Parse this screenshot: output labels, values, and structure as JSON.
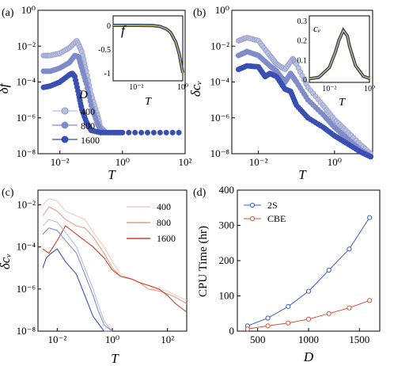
{
  "colors": {
    "d400": "#b9bfdf",
    "d800": "#7f8cc9",
    "d1600": "#3a4fb2",
    "d400_c": "#f4c9c0",
    "d800_c": "#e89c89",
    "d1600_c": "#c8432a",
    "s2": "#3b5ec8",
    "cbe": "#d2553a",
    "inset_fill": "#2e3d7a",
    "inset_line": "#e6d44a"
  },
  "panels": {
    "a": {
      "label": "(a)",
      "ylabel": "δf",
      "xlabel": "T",
      "inset_label": "f",
      "inset_xlabel": "T",
      "legend_title": "D"
    },
    "b": {
      "label": "(b)",
      "ylabel": "δcᵥ",
      "xlabel": "T",
      "inset_label": "cᵥ",
      "inset_xlabel": "T"
    },
    "c": {
      "label": "(c)",
      "ylabel": "δcᵥ",
      "xlabel": "T"
    },
    "d": {
      "label": "(d)",
      "ylabel": "CPU Time (hr)",
      "xlabel": "D"
    }
  },
  "ticks": {
    "a_x": [
      "10⁻²",
      "10⁰",
      "10²"
    ],
    "a_y": [
      "10⁻⁸",
      "10⁻⁶",
      "10⁻⁴",
      "10⁻²",
      "10⁰"
    ],
    "a_ix": [
      "10⁻²",
      "10⁰"
    ],
    "a_iy": [
      "-1",
      "-0.5",
      "0"
    ],
    "b_x": [
      "10⁻²",
      "10⁰"
    ],
    "b_y": [
      "10⁻⁸",
      "10⁻⁶",
      "10⁻⁴",
      "10⁻²",
      "10⁰"
    ],
    "b_ix": [
      "10⁻²",
      "10⁰"
    ],
    "b_iy": [
      "0",
      "0.1",
      "0.2",
      "0.3"
    ],
    "c_x": [
      "10⁻²",
      "10⁰",
      "10²"
    ],
    "c_y": [
      "10⁻⁸",
      "10⁻⁶",
      "10⁻⁴",
      "10⁻²"
    ],
    "d_x": [
      "500",
      "1000",
      "1500"
    ],
    "d_y": [
      "0",
      "100",
      "200",
      "300",
      "400"
    ]
  },
  "legend_a": [
    "400",
    "800",
    "1600"
  ],
  "legend_c": [
    "400",
    "800",
    "1600"
  ],
  "legend_d": [
    "2S",
    "CBE"
  ],
  "chart_data": [
    {
      "panel": "a",
      "type": "scatter",
      "xscale": "log",
      "yscale": "log",
      "xlim": [
        0.002,
        100
      ],
      "ylim": [
        1e-08,
        1
      ],
      "xlabel": "T",
      "ylabel": "δf",
      "series": [
        {
          "name": "400",
          "x": [
            0.003,
            0.005,
            0.01,
            0.02,
            0.035,
            0.05,
            0.07,
            0.1,
            0.15,
            0.2,
            0.3
          ],
          "y": [
            0.003,
            0.003,
            0.004,
            0.008,
            0.02,
            0.005,
            0.0004,
            2e-05,
            2e-06,
            3e-07,
            1.5e-07
          ]
        },
        {
          "name": "800",
          "x": [
            0.003,
            0.005,
            0.01,
            0.02,
            0.03,
            0.04,
            0.05,
            0.07,
            0.1,
            0.15,
            0.2,
            0.3
          ],
          "y": [
            0.0004,
            0.0004,
            0.0006,
            0.0012,
            0.003,
            0.0025,
            0.0006,
            8e-05,
            5e-06,
            6e-07,
            2e-07,
            1.5e-07
          ]
        },
        {
          "name": "1600",
          "x": [
            0.003,
            0.005,
            0.01,
            0.02,
            0.025,
            0.03,
            0.04,
            0.05,
            0.07,
            0.1,
            0.2,
            0.5,
            1,
            10,
            100
          ],
          "y": [
            5e-05,
            6e-05,
            0.0001,
            0.00025,
            0.0003,
            0.0002,
            2e-05,
            3e-06,
            6e-07,
            2e-07,
            1.5e-07,
            1.5e-07,
            1.5e-07,
            1.5e-07,
            1.5e-07
          ]
        }
      ],
      "inset": {
        "type": "line",
        "xscale": "log",
        "xlim": [
          0.001,
          1
        ],
        "ylim": [
          -1,
          0
        ],
        "x": [
          0.001,
          0.01,
          0.05,
          0.1,
          0.2,
          0.3,
          0.5,
          0.7,
          1
        ],
        "y": [
          0,
          0,
          -0.005,
          -0.02,
          -0.08,
          -0.15,
          -0.35,
          -0.6,
          -1
        ]
      }
    },
    {
      "panel": "b",
      "type": "scatter",
      "xscale": "log",
      "yscale": "log",
      "xlim": [
        0.002,
        10
      ],
      "ylim": [
        1e-08,
        1
      ],
      "xlabel": "T",
      "ylabel": "δcᵥ",
      "series": [
        {
          "name": "400",
          "x": [
            0.003,
            0.005,
            0.01,
            0.02,
            0.03,
            0.05,
            0.08,
            0.1,
            0.2,
            0.5,
            1,
            2,
            5,
            10
          ],
          "y": [
            0.02,
            0.03,
            0.02,
            0.003,
            0.001,
            0.0005,
            0.002,
            0.001,
            5e-05,
            5e-06,
            8e-07,
            2e-07,
            3e-08,
            8e-09
          ]
        },
        {
          "name": "800",
          "x": [
            0.003,
            0.005,
            0.01,
            0.02,
            0.03,
            0.05,
            0.07,
            0.1,
            0.2,
            0.5,
            1,
            2,
            5,
            10
          ],
          "y": [
            0.003,
            0.005,
            0.003,
            0.0008,
            0.0004,
            0.0001,
            0.0003,
            0.0001,
            1e-05,
            1.5e-06,
            3e-07,
            8e-08,
            1.5e-08,
            6e-09
          ]
        },
        {
          "name": "1600",
          "x": [
            0.003,
            0.005,
            0.01,
            0.015,
            0.02,
            0.03,
            0.05,
            0.07,
            0.1,
            0.2,
            0.5,
            1,
            2,
            5,
            10
          ],
          "y": [
            0.0005,
            0.0008,
            0.0007,
            0.0002,
            0.0003,
            0.0002,
            4e-05,
            3e-05,
            5e-06,
            1e-06,
            3e-07,
            1e-07,
            4e-08,
            1.2e-08,
            6e-09
          ]
        }
      ],
      "inset": {
        "type": "line",
        "xscale": "log",
        "xlim": [
          0.001,
          1
        ],
        "ylim": [
          0,
          0.3
        ],
        "x": [
          0.001,
          0.003,
          0.01,
          0.02,
          0.03,
          0.05,
          0.08,
          0.1,
          0.2,
          0.5,
          1
        ],
        "y": [
          0.002,
          0.01,
          0.06,
          0.14,
          0.2,
          0.25,
          0.22,
          0.17,
          0.07,
          0.015,
          0.004
        ]
      }
    },
    {
      "panel": "c",
      "type": "line",
      "xscale": "log",
      "yscale": "log",
      "xlim": [
        0.002,
        500
      ],
      "ylim": [
        1e-08,
        0.05
      ],
      "xlabel": "T",
      "ylabel": "δcᵥ",
      "series": [
        {
          "name": "400",
          "x": [
            0.003,
            0.005,
            0.01,
            0.02,
            0.05,
            0.1,
            0.2,
            0.5,
            1,
            2,
            5,
            10,
            20,
            50,
            100,
            200,
            500
          ],
          "y": [
            0.01,
            0.02,
            0.015,
            0.005,
            0.003,
            0.002,
            0.0005,
            0.0001,
            2e-05,
            5e-06,
            3e-06,
            2e-06,
            1e-06,
            1e-06,
            8e-07,
            5e-07,
            3e-07
          ]
        },
        {
          "name": "800",
          "x": [
            0.003,
            0.005,
            0.01,
            0.02,
            0.05,
            0.1,
            0.2,
            0.5,
            1,
            2,
            5,
            10,
            20,
            50,
            100,
            200,
            500
          ],
          "y": [
            0.003,
            0.008,
            0.005,
            0.002,
            0.001,
            0.0008,
            0.0003,
            5e-05,
            1e-05,
            4e-06,
            3e-06,
            2e-06,
            1e-06,
            8e-07,
            6e-07,
            4e-07,
            2e-07
          ]
        },
        {
          "name": "1600",
          "x": [
            0.003,
            0.005,
            0.01,
            0.02,
            0.05,
            0.1,
            0.2,
            0.5,
            1,
            2,
            5,
            10,
            20,
            50,
            100,
            200,
            500
          ],
          "y": [
            8e-05,
            5e-05,
            0.0002,
            0.001,
            0.0004,
            0.0002,
            0.0001,
            3e-05,
            8e-06,
            4e-06,
            3e-06,
            2e-06,
            1.5e-06,
            1e-06,
            5e-07,
            2e-07,
            8e-08
          ]
        }
      ],
      "blue_series": [
        {
          "x": [
            0.003,
            0.005,
            0.01,
            0.02,
            0.05,
            0.1,
            0.2,
            0.3,
            0.5,
            1
          ],
          "y": [
            0.001,
            0.002,
            0.0015,
            0.0005,
            0.0001,
            1e-05,
            1e-06,
            2e-07,
            3e-08,
            1e-08
          ]
        },
        {
          "x": [
            0.003,
            0.005,
            0.01,
            0.02,
            0.05,
            0.1,
            0.2,
            0.3,
            0.5,
            1
          ],
          "y": [
            0.0004,
            0.0008,
            0.0006,
            0.0002,
            5e-05,
            5e-06,
            5e-07,
            1e-07,
            2e-08,
            1e-08
          ]
        },
        {
          "x": [
            0.003,
            0.004,
            0.006,
            0.01,
            0.02,
            0.05,
            0.1,
            0.2,
            0.5,
            1
          ],
          "y": [
            1e-05,
            3e-05,
            5e-05,
            8e-05,
            2e-05,
            5e-06,
            5e-07,
            5e-08,
            1e-08,
            1e-08
          ]
        }
      ]
    },
    {
      "panel": "d",
      "type": "line",
      "xlim": [
        300,
        1700
      ],
      "ylim": [
        0,
        400
      ],
      "xlabel": "D",
      "ylabel": "CPU Time (hr)",
      "series": [
        {
          "name": "2S",
          "x": [
            400,
            600,
            800,
            1000,
            1200,
            1400,
            1600
          ],
          "y": [
            15,
            37,
            70,
            113,
            173,
            233,
            322
          ]
        },
        {
          "name": "CBE",
          "x": [
            400,
            600,
            800,
            1000,
            1200,
            1400,
            1600
          ],
          "y": [
            6,
            15,
            23,
            34,
            50,
            66,
            87
          ]
        }
      ]
    }
  ]
}
